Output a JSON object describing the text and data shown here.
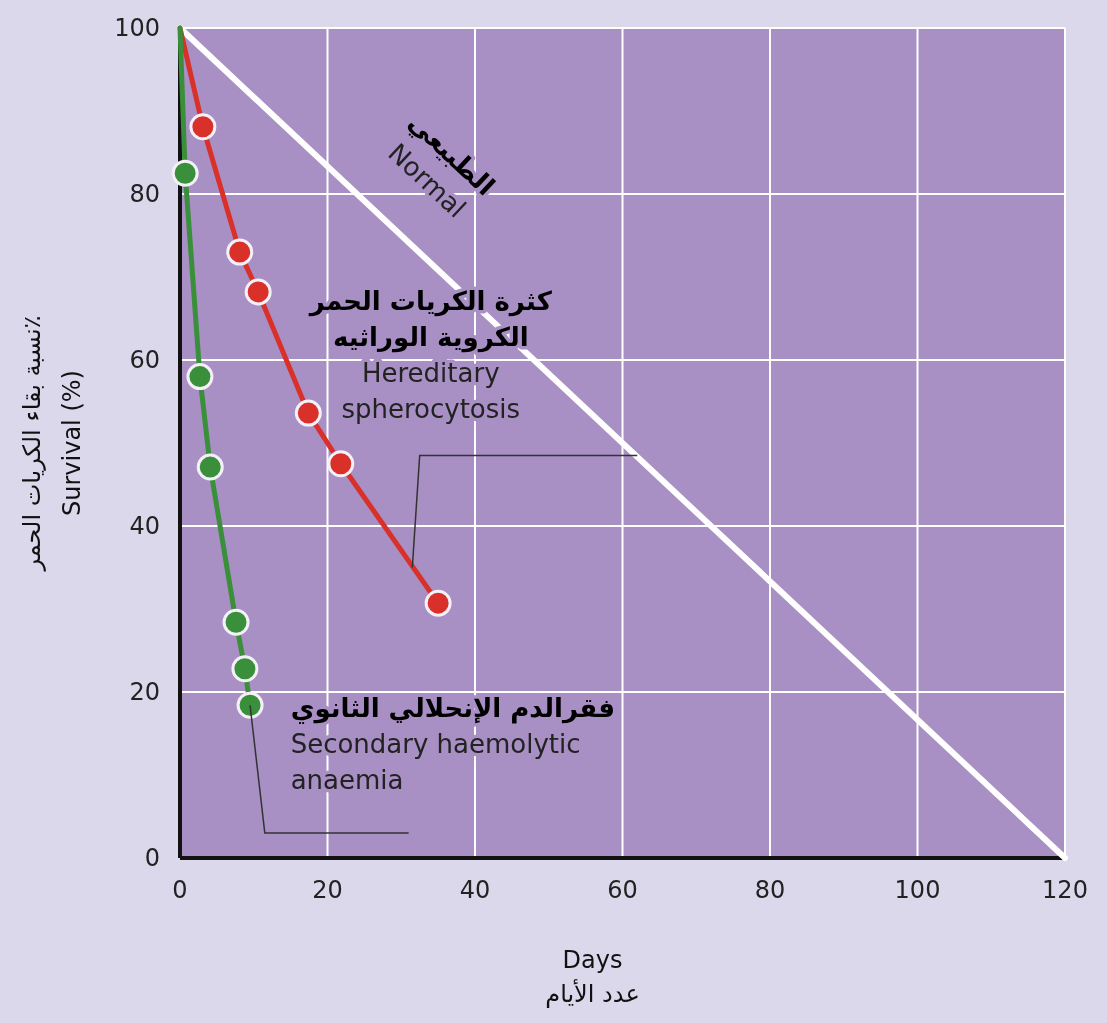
{
  "chart_data": {
    "type": "line",
    "xlabel": "Days\nعدد الأيام",
    "ylabel": "نسبة بقاء الكريات الحمر٪\nSurvival (%)",
    "xlim": [
      0,
      120
    ],
    "xticks": [
      0,
      20,
      40,
      60,
      80,
      100,
      120
    ],
    "ylim": [
      0,
      100
    ],
    "yticks": [
      0,
      20,
      40,
      60,
      80,
      100
    ],
    "grid": true,
    "legend": false,
    "line_style": "solid",
    "series": [
      {
        "name": "الطبيعي\nNormal",
        "color": "#ffffff",
        "marker": "none",
        "x": [
          0,
          120
        ],
        "values": [
          100,
          0
        ]
      },
      {
        "name": "كثرة الكريات الحمر\nالكروية الوراثيه\nHereditary\nspherocytosis",
        "color": "#d9302a",
        "marker": "circle",
        "x": [
          0,
          3.1,
          8.1,
          10.6,
          17.4,
          21.8,
          35.0
        ],
        "values": [
          100,
          88.1,
          73.0,
          68.2,
          53.6,
          47.5,
          30.7
        ]
      },
      {
        "name": "فقرالدم الإنحلالي الثانوي\nSecondary haemolytic\nanaemia",
        "color": "#3a8f3a",
        "marker": "circle",
        "x": [
          0,
          0.7,
          2.7,
          4.1,
          7.6,
          8.8,
          9.5
        ],
        "values": [
          100,
          82.5,
          58.0,
          47.1,
          28.4,
          22.8,
          18.4
        ]
      }
    ]
  }
}
